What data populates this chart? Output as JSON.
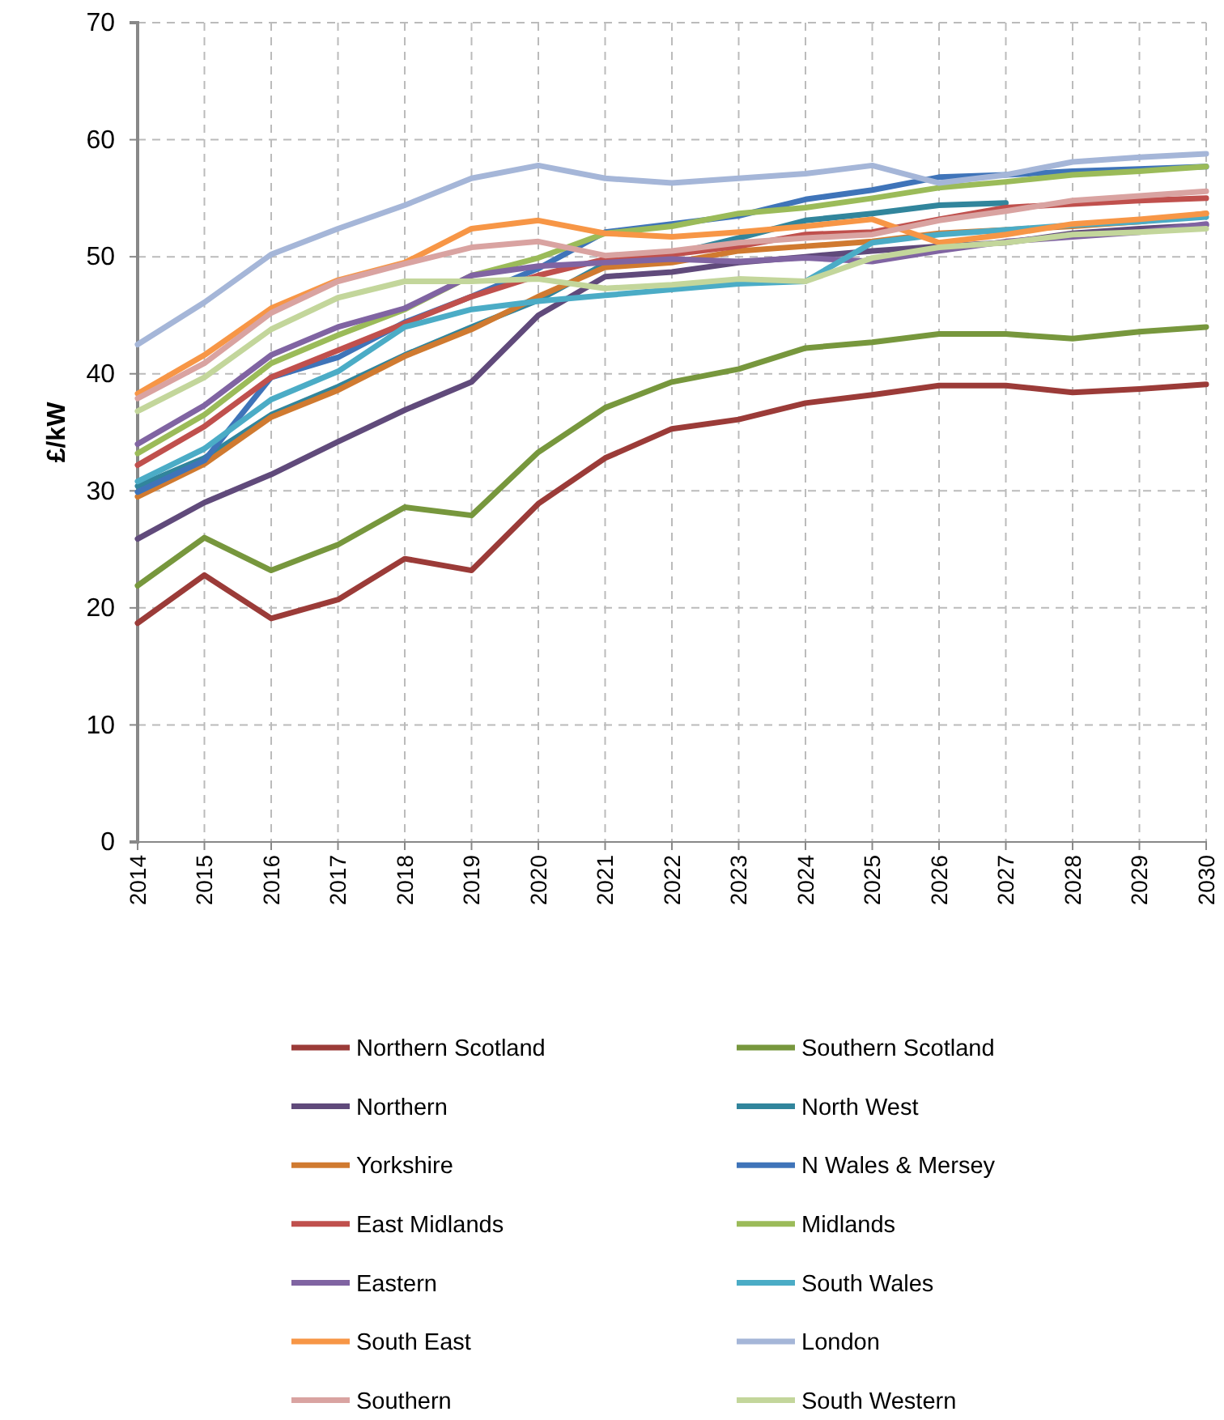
{
  "chart_data": {
    "type": "line",
    "ylabel": "£/kW",
    "x": [
      2014,
      2015,
      2016,
      2017,
      2018,
      2019,
      2020,
      2021,
      2022,
      2023,
      2024,
      2025,
      2026,
      2027,
      2028,
      2029,
      2030
    ],
    "xlim": [
      2014,
      2030
    ],
    "xticks": [
      2014,
      2015,
      2016,
      2017,
      2018,
      2019,
      2020,
      2021,
      2022,
      2023,
      2024,
      2025,
      2026,
      2027,
      2028,
      2029,
      2030
    ],
    "ylim": [
      0,
      70
    ],
    "yticks": [
      0,
      10,
      20,
      30,
      40,
      50,
      60,
      70
    ],
    "grid": true,
    "legend": "bottom",
    "marker": "none",
    "line_style": "solid",
    "series": [
      {
        "name": "Northern Scotland",
        "color": "#9b3b38",
        "values": [
          18.7,
          22.8,
          19.1,
          20.7,
          24.2,
          23.2,
          28.9,
          32.8,
          35.3,
          36.1,
          37.5,
          38.2,
          39.0,
          39.0,
          38.4,
          38.7,
          39.1
        ]
      },
      {
        "name": "Southern Scotland",
        "color": "#77973d",
        "values": [
          21.9,
          26.0,
          23.2,
          25.4,
          28.6,
          27.9,
          33.3,
          37.1,
          39.3,
          40.4,
          42.2,
          42.7,
          43.4,
          43.4,
          43.0,
          43.6,
          44.0
        ]
      },
      {
        "name": "Northern",
        "color": "#604a7b",
        "values": [
          25.9,
          29.0,
          31.4,
          34.2,
          36.9,
          39.3,
          45.0,
          48.3,
          48.7,
          49.5,
          50.0,
          50.5,
          50.9,
          51.2,
          52.0,
          52.4,
          52.7
        ]
      },
      {
        "name": "North West",
        "color": "#31859c",
        "values": [
          30.4,
          32.8,
          36.5,
          38.9,
          41.6,
          44.0,
          46.3,
          49.4,
          50.2,
          51.6,
          53.1,
          53.7,
          54.4,
          54.6,
          null,
          null,
          null
        ]
      },
      {
        "name": "Yorkshire",
        "color": "#d07a30",
        "values": [
          29.5,
          32.3,
          36.3,
          38.6,
          41.5,
          43.8,
          46.6,
          49.1,
          49.5,
          50.5,
          50.9,
          51.3,
          52.0,
          52.3,
          52.6,
          53.0,
          53.7
        ]
      },
      {
        "name": "N Wales & Mersey",
        "color": "#3f74b9",
        "values": [
          29.9,
          32.6,
          39.7,
          41.4,
          44.4,
          46.6,
          49.0,
          52.1,
          52.8,
          53.5,
          54.9,
          55.7,
          56.8,
          57.0,
          57.3,
          57.5,
          57.7
        ]
      },
      {
        "name": "East Midlands",
        "color": "#c0504d",
        "values": [
          32.2,
          35.5,
          39.7,
          42.0,
          44.3,
          46.6,
          48.4,
          49.8,
          50.2,
          50.9,
          51.9,
          52.1,
          53.2,
          54.2,
          54.5,
          54.8,
          55.0
        ]
      },
      {
        "name": "Midlands",
        "color": "#9bbb59",
        "values": [
          33.2,
          36.5,
          40.9,
          43.3,
          45.5,
          48.4,
          49.9,
          52.0,
          52.6,
          53.7,
          54.2,
          55.0,
          55.9,
          56.4,
          57.0,
          57.3,
          57.7
        ]
      },
      {
        "name": "Eastern",
        "color": "#8064a2",
        "values": [
          34.0,
          37.3,
          41.6,
          44.0,
          45.6,
          48.4,
          49.2,
          49.5,
          49.8,
          49.6,
          49.9,
          49.6,
          50.5,
          51.3,
          51.7,
          52.1,
          52.8
        ]
      },
      {
        "name": "South Wales",
        "color": "#4bacc6",
        "values": [
          30.8,
          33.6,
          37.8,
          40.2,
          44.0,
          45.5,
          46.2,
          46.7,
          47.2,
          47.7,
          47.9,
          51.2,
          51.9,
          52.3,
          52.7,
          53.0,
          53.4
        ]
      },
      {
        "name": "South East",
        "color": "#f79646",
        "values": [
          38.3,
          41.6,
          45.6,
          48.0,
          49.5,
          52.4,
          53.1,
          52.0,
          51.7,
          52.1,
          52.6,
          53.2,
          51.2,
          51.9,
          52.8,
          53.2,
          53.7
        ]
      },
      {
        "name": "London",
        "color": "#a5b6d8",
        "values": [
          42.5,
          46.1,
          50.2,
          52.4,
          54.4,
          56.7,
          57.8,
          56.7,
          56.3,
          56.7,
          57.1,
          57.8,
          56.3,
          57.0,
          58.1,
          58.5,
          58.8
        ]
      },
      {
        "name": "Southern",
        "color": "#d9a3a1",
        "values": [
          37.9,
          40.9,
          45.2,
          47.9,
          49.4,
          50.8,
          51.3,
          50.1,
          50.5,
          51.2,
          51.6,
          51.9,
          53.1,
          53.9,
          54.8,
          55.2,
          55.6
        ]
      },
      {
        "name": "South Western",
        "color": "#c3d69b",
        "values": [
          36.8,
          39.7,
          43.8,
          46.5,
          47.9,
          47.9,
          48.1,
          47.3,
          47.6,
          48.1,
          47.9,
          49.9,
          50.8,
          51.2,
          51.9,
          52.1,
          52.4
        ]
      }
    ]
  }
}
